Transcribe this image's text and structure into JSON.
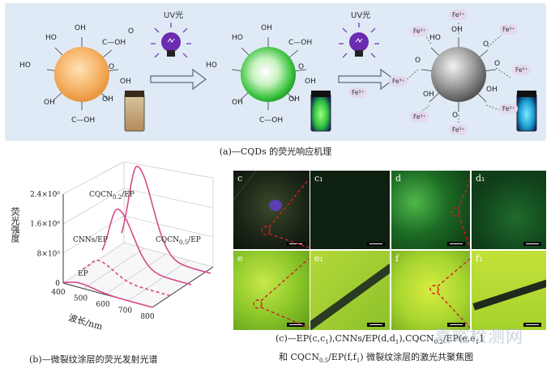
{
  "scheme": {
    "uv_label_1": "UV光",
    "uv_label_2": "UV光",
    "oh": "OH",
    "ho": "HO",
    "cooh": "C—OH",
    "o": "O",
    "fe3": "Fe³⁺",
    "fe_free": "Fe³⁺"
  },
  "captions": {
    "a": "(a)—CQDs 的荧光响应机理",
    "b": "(b)—微裂纹涂层的荧光发射光谱",
    "c_line1_parts": [
      "(c)—EP(c,c",
      "1",
      "),CNNs/EP(d,d",
      "1",
      "),CQCN",
      "0.2",
      "/EP(e,e",
      "1",
      ")"
    ],
    "c_line2_parts": [
      "和 CQCN",
      "0.5",
      "/EP(f,f",
      "1",
      ") 微裂纹涂层的激光共聚焦图"
    ]
  },
  "micro_labels": [
    "c",
    "c₁",
    "d",
    "d₁",
    "e",
    "e₁",
    "f",
    "f₁"
  ],
  "watermark": "嘉峪检测网",
  "chart_data": {
    "type": "line",
    "title": "",
    "xlabel": "波长/nm",
    "ylabel": "荧光强度",
    "x_ticks": [
      "400",
      "500",
      "600",
      "700",
      "800"
    ],
    "y_ticks": [
      "0",
      "8×10⁵",
      "1.6×10⁶",
      "2.4×10⁶"
    ],
    "ylim": [
      0,
      2400000
    ],
    "xlim": [
      400,
      800
    ],
    "series": [
      {
        "name": "EP",
        "peak_x": 470,
        "peak_y": 120000
      },
      {
        "name": "CNNs/EP",
        "peak_x": 470,
        "peak_y": 420000
      },
      {
        "name": "CQCN0.2/EP",
        "peak_x": 470,
        "peak_y": 1500000
      },
      {
        "name": "CQCN0.5/EP",
        "peak_x": 470,
        "peak_y": 2350000
      }
    ],
    "series_labels": {
      "ep": "EP",
      "cnns": "CNNs/EP",
      "cq02_main": "CQCN",
      "cq02_sub": "0.2",
      "cq02_tail": "/EP",
      "cq05_main": "CQCN",
      "cq05_sub": "0.5",
      "cq05_tail": "/EP"
    }
  }
}
